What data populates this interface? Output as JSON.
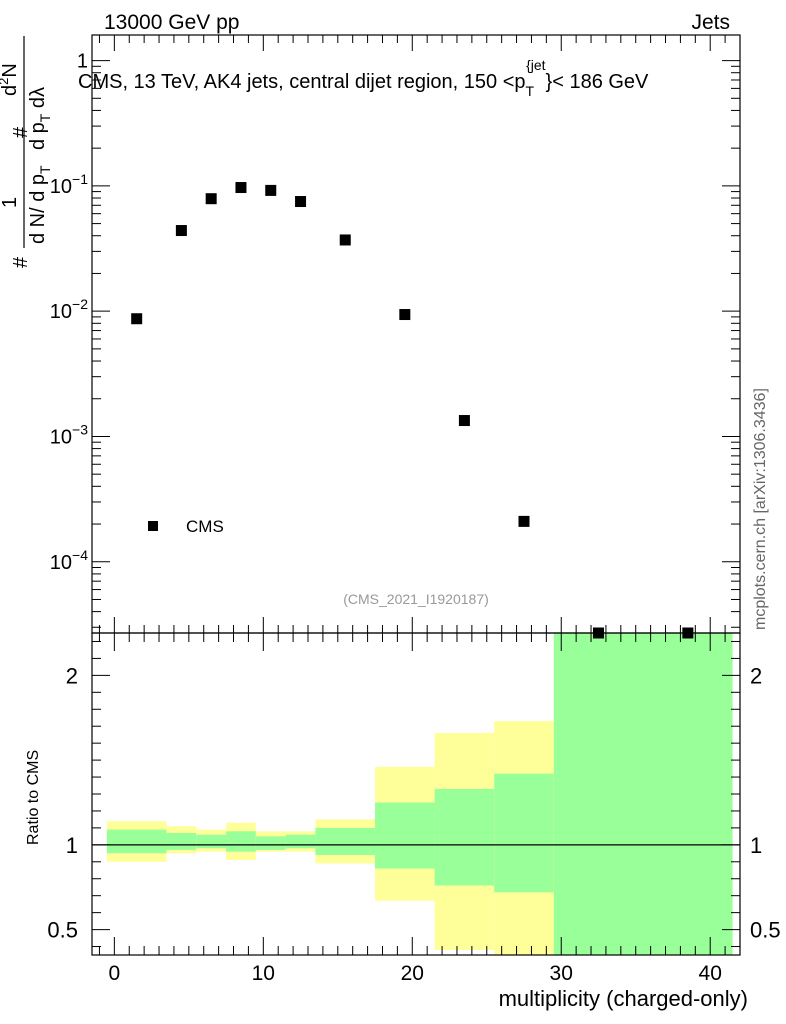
{
  "header": {
    "left": "13000 GeV pp",
    "right": "Jets"
  },
  "watermark": "mcplots.cern.ch [arXiv:1306.3436]",
  "analysis_label": "(CMS_2021_I1920187)",
  "colors": {
    "data_marker": "#000000",
    "band_outer": "#ffff99",
    "band_inner": "#99ff99",
    "reference_line": "#000000",
    "analysis_label": "#999999"
  },
  "chart_data": [
    {
      "type": "scatter",
      "title": "CMS, 13 TeV, AK4 jets, central dijet region, 150 < p_T^{jet} < 186 GeV",
      "title_parts": {
        "main": "CMS, 13 TeV, AK4 jets, central dijet region, 150 <p",
        "sub": "T",
        "sup": "{jet",
        "tail": "}< 186 GeV"
      },
      "yscale": "log",
      "ylim": [
        2.7e-05,
        1.6
      ],
      "xlim": [
        -1.5,
        42
      ],
      "ylabel": "1/N dN/dp_T d^2N/dp_T dλ",
      "ylabel_parts": {
        "hash1": "#",
        "frac1_num": "1",
        "frac1_den": "d N/ d p",
        "frac1_den_sub": "T",
        "hash2": "#",
        "frac2_num_pre": "d",
        "frac2_num_sup": "2",
        "frac2_num_post": "N",
        "frac2_den": "d p",
        "frac2_den_sub": "T",
        "frac2_den_post": " dλ"
      },
      "y_ticks": [
        {
          "value": 1,
          "label": "1"
        },
        {
          "value": 0.1,
          "base": "10",
          "exp": "−1"
        },
        {
          "value": 0.01,
          "base": "10",
          "exp": "−2"
        },
        {
          "value": 0.001,
          "base": "10",
          "exp": "−3"
        },
        {
          "value": 0.0001,
          "base": "10",
          "exp": "−4"
        }
      ],
      "series": [
        {
          "name": "CMS",
          "x": [
            1.5,
            4.5,
            6.5,
            8.5,
            10.5,
            12.5,
            15.5,
            19.5,
            23.5,
            27.5,
            32.5,
            38.5
          ],
          "y": [
            0.0087,
            0.044,
            0.079,
            0.097,
            0.092,
            0.075,
            0.037,
            0.0094,
            0.00134,
            0.00021,
            2.7e-05,
            2.7e-05
          ]
        }
      ],
      "legend": [
        {
          "label": "CMS",
          "marker": "square"
        }
      ],
      "legend_position": "bottom-left"
    },
    {
      "type": "area",
      "ylabel": "Ratio to CMS",
      "xlabel": "multiplicity (charged-only)",
      "ylim": [
        0.35,
        2.25
      ],
      "xlim": [
        -1.5,
        42
      ],
      "reference": 1.0,
      "y_ticks": [
        {
          "value": 0.5,
          "label": "0.5"
        },
        {
          "value": 1,
          "label": "1"
        },
        {
          "value": 2,
          "label": "2"
        }
      ],
      "x_ticks": [
        {
          "value": 0,
          "label": "0"
        },
        {
          "value": 10,
          "label": "10"
        },
        {
          "value": 20,
          "label": "20"
        },
        {
          "value": 30,
          "label": "30"
        },
        {
          "value": 40,
          "label": "40"
        }
      ],
      "bins": [
        {
          "lo": -0.5,
          "hi": 3.5,
          "outer": [
            0.9,
            1.14
          ],
          "inner": [
            0.95,
            1.09
          ]
        },
        {
          "lo": 3.5,
          "hi": 5.5,
          "outer": [
            0.95,
            1.11
          ],
          "inner": [
            0.97,
            1.07
          ]
        },
        {
          "lo": 5.5,
          "hi": 7.5,
          "outer": [
            0.96,
            1.09
          ],
          "inner": [
            0.98,
            1.06
          ]
        },
        {
          "lo": 7.5,
          "hi": 9.5,
          "outer": [
            0.91,
            1.13
          ],
          "inner": [
            0.96,
            1.08
          ]
        },
        {
          "lo": 9.5,
          "hi": 11.5,
          "outer": [
            0.96,
            1.08
          ],
          "inner": [
            0.97,
            1.05
          ]
        },
        {
          "lo": 11.5,
          "hi": 13.5,
          "outer": [
            0.96,
            1.08
          ],
          "inner": [
            0.98,
            1.06
          ]
        },
        {
          "lo": 13.5,
          "hi": 17.5,
          "outer": [
            0.89,
            1.15
          ],
          "inner": [
            0.94,
            1.1
          ]
        },
        {
          "lo": 17.5,
          "hi": 21.5,
          "outer": [
            0.67,
            1.46
          ],
          "inner": [
            0.86,
            1.25
          ]
        },
        {
          "lo": 21.5,
          "hi": 25.5,
          "outer": [
            0.38,
            1.66
          ],
          "inner": [
            0.76,
            1.33
          ]
        },
        {
          "lo": 25.5,
          "hi": 29.5,
          "outer": [
            0.35,
            1.73
          ],
          "inner": [
            0.72,
            1.42
          ]
        },
        {
          "lo": 29.5,
          "hi": 41.5,
          "outer": [
            0.35,
            2.25
          ],
          "inner": [
            0.35,
            2.25
          ]
        }
      ]
    }
  ]
}
